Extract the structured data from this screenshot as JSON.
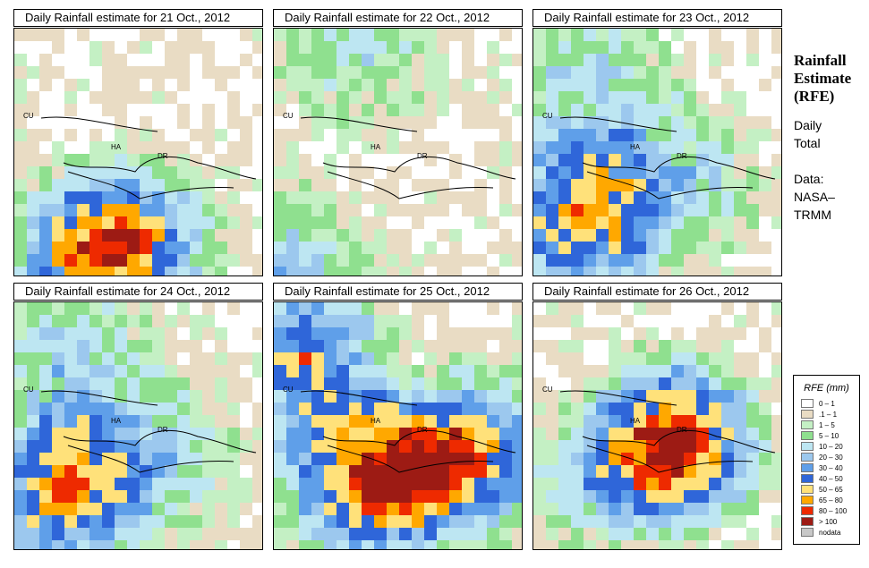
{
  "figure": {
    "side_title": "Rainfall Estimate (RFE)",
    "period": "Daily Total",
    "source": "Data: NASA–TRMM"
  },
  "labels": {
    "cuba": "CU",
    "haiti": "HA",
    "dominican_republic": "DR"
  },
  "panels": [
    {
      "title": "Daily Rainfall estimate for  21 Oct., 2012",
      "rain_center": "south"
    },
    {
      "title": "Daily Rainfall estimate for  22 Oct., 2012",
      "rain_center": "west"
    },
    {
      "title": "Daily Rainfall estimate for  23 Oct., 2012",
      "rain_center": "southwest"
    },
    {
      "title": "Daily Rainfall estimate for  24 Oct., 2012",
      "rain_center": "southwest"
    },
    {
      "title": "Daily Rainfall estimate for  25 Oct., 2012",
      "rain_center": "center"
    },
    {
      "title": "Daily Rainfall estimate for  26 Oct., 2012",
      "rain_center": "south-band"
    }
  ],
  "legend": {
    "title": "RFE (mm)",
    "items": [
      {
        "label": "0 – 1",
        "color": "#ffffff"
      },
      {
        "label": ".1 – 1",
        "color": "#e9dcc4"
      },
      {
        "label": "1 – 5",
        "color": "#c4f0c4"
      },
      {
        "label": "5 – 10",
        "color": "#8fe08f"
      },
      {
        "label": "10 – 20",
        "color": "#bde6f2"
      },
      {
        "label": "20 – 30",
        "color": "#9cc8ee"
      },
      {
        "label": "30 – 40",
        "color": "#5f9fe9"
      },
      {
        "label": "40 – 50",
        "color": "#2f66d9"
      },
      {
        "label": "50 – 65",
        "color": "#ffe17a"
      },
      {
        "label": "65 – 80",
        "color": "#ffa800"
      },
      {
        "label": "80 – 100",
        "color": "#ee2a00"
      },
      {
        "label": "> 100",
        "color": "#9d1b14"
      },
      {
        "label": "nodata",
        "color": "#c8c8c8"
      }
    ]
  }
}
